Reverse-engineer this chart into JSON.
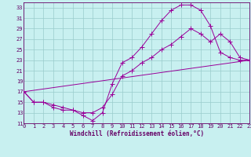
{
  "xlabel": "Windchill (Refroidissement éolien,°C)",
  "bg_color": "#c8f0f0",
  "grid_color": "#99cccc",
  "line_color": "#990099",
  "spine_color": "#660066",
  "xlim": [
    0,
    23
  ],
  "ylim": [
    11,
    34
  ],
  "xticks": [
    0,
    1,
    2,
    3,
    4,
    5,
    6,
    7,
    8,
    9,
    10,
    11,
    12,
    13,
    14,
    15,
    16,
    17,
    18,
    19,
    20,
    21,
    22,
    23
  ],
  "yticks": [
    11,
    13,
    15,
    17,
    19,
    21,
    23,
    25,
    27,
    29,
    31,
    33
  ],
  "curve1_x": [
    0,
    1,
    2,
    3,
    4,
    5,
    6,
    7,
    8,
    9,
    10,
    11,
    12,
    13,
    14,
    15,
    16,
    17,
    18,
    19,
    20,
    21,
    22,
    23
  ],
  "curve1_y": [
    17.0,
    15.0,
    15.0,
    14.0,
    13.5,
    13.5,
    12.5,
    11.5,
    13.0,
    18.5,
    22.5,
    23.5,
    25.5,
    28.0,
    30.5,
    32.5,
    33.5,
    33.5,
    32.5,
    29.5,
    24.5,
    23.5,
    23.0,
    23.0
  ],
  "curve2_x": [
    0,
    1,
    2,
    3,
    4,
    5,
    6,
    7,
    8,
    9,
    10,
    11,
    12,
    13,
    14,
    15,
    16,
    17,
    18,
    19,
    20,
    21,
    22,
    23
  ],
  "curve2_y": [
    17.0,
    15.0,
    15.0,
    14.5,
    14.0,
    13.5,
    13.0,
    13.0,
    14.0,
    16.5,
    20.0,
    21.0,
    22.5,
    23.5,
    25.0,
    26.0,
    27.5,
    29.0,
    28.0,
    26.5,
    28.0,
    26.5,
    23.5,
    23.0
  ],
  "curve3_x": [
    0,
    23
  ],
  "curve3_y": [
    17.0,
    23.0
  ],
  "tick_fontsize": 5.0,
  "label_fontsize": 5.5
}
